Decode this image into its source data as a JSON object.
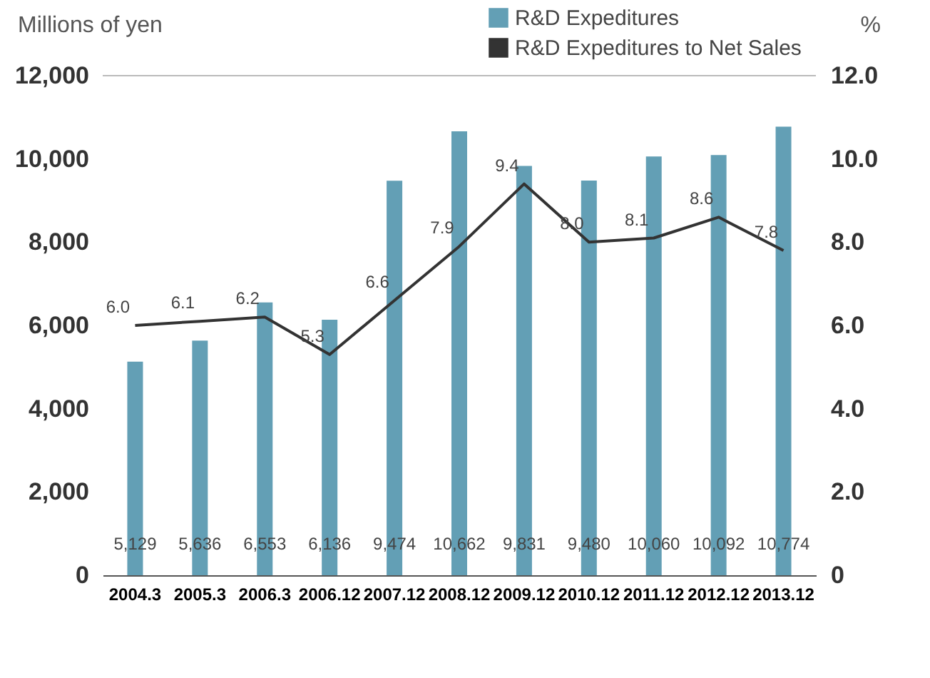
{
  "chart_data": {
    "type": "bar",
    "categories": [
      "2004.3",
      "2005.3",
      "2006.3",
      "2006.12",
      "2007.12",
      "2008.12",
      "2009.12",
      "2010.12",
      "2011.12",
      "2012.12",
      "2013.12"
    ],
    "series": [
      {
        "name": "R&D Expeditures",
        "color": "#639fb5",
        "values": [
          5129,
          5636,
          6553,
          6136,
          9474,
          10662,
          9831,
          9480,
          10060,
          10092,
          10774
        ],
        "value_labels": [
          "5,129",
          "5,636",
          "6,553",
          "6,136",
          "9,474",
          "10,662",
          "9,831",
          "9,480",
          "10,060",
          "10,092",
          "10,774"
        ]
      },
      {
        "name": "R&D Expeditures to Net Sales",
        "type": "line",
        "axis": "y2",
        "color": "#333333",
        "values": [
          6.0,
          6.1,
          6.2,
          5.3,
          6.6,
          7.9,
          9.4,
          8.0,
          8.1,
          8.6,
          7.8
        ],
        "value_labels": [
          "6.0",
          "6.1",
          "6.2",
          "5.3",
          "6.6",
          "7.9",
          "9.4",
          "8.0",
          "8.1",
          "8.6",
          "7.8"
        ]
      }
    ],
    "ylabel": "Millions of yen",
    "y2label": "%",
    "ylim": [
      0,
      12000
    ],
    "yticks": [
      0,
      {
        "value": 2000,
        "label": "2,000"
      },
      {
        "value": 4000,
        "label": "4,000"
      },
      {
        "value": 6000,
        "label": "6,000"
      },
      {
        "value": 8000,
        "label": "8,000"
      },
      {
        "value": 10000,
        "label": "10,000"
      },
      {
        "value": 12000,
        "label": "12,000"
      }
    ],
    "y2lim": [
      0,
      12.0
    ],
    "y2ticks": [
      0,
      {
        "value": 2,
        "label": "2.0"
      },
      {
        "value": 4,
        "label": "4.0"
      },
      {
        "value": 6,
        "label": "6.0"
      },
      {
        "value": 8,
        "label": "8.0"
      },
      {
        "value": 10,
        "label": "10.0"
      },
      {
        "value": 12,
        "label": "12.0"
      }
    ],
    "legend": "top right",
    "grid": false,
    "marker": "none",
    "line_style": "solid"
  }
}
